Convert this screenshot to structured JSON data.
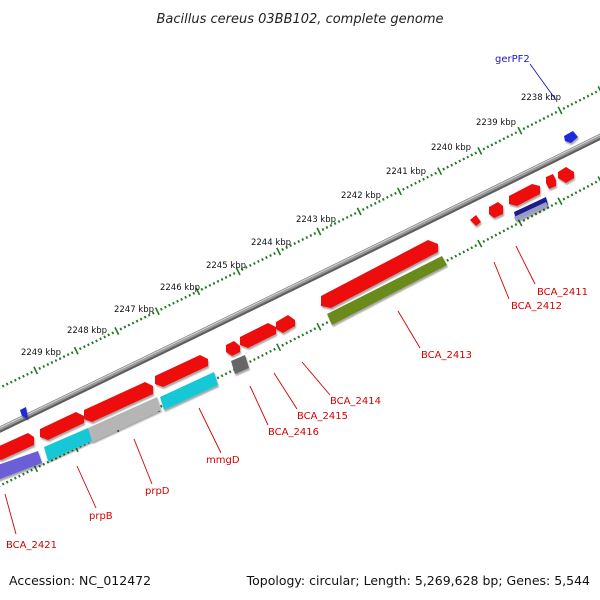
{
  "title": "Bacillus cereus 03BB102, complete genome",
  "accession": "Accession: NC_012472",
  "summary": "Topology: circular; Length: 5,269,628 bp; Genes: 5,544",
  "colors": {
    "backbone": "#8a8a8a",
    "tick_green": "#1f7a1f",
    "gene_red": "#ee1111",
    "gene_cyan": "#19c7d6",
    "gene_gray": "#b5b5b5",
    "gene_dark_gray": "#666666",
    "gene_olive": "#6a8a1e",
    "gene_purple": "#6a5fd6",
    "gene_navy": "#1a1a8c",
    "gene_blue": "#1a2ad8",
    "label_red": "#d40000",
    "label_blue": "#1a1ab8"
  },
  "scale_labels": [
    "2238 kbp",
    "2239 kbp",
    "2240 kbp",
    "2241 kbp",
    "2242 kbp",
    "2243 kbp",
    "2244 kbp",
    "2245 kbp",
    "2246 kbp",
    "2247 kbp",
    "2248 kbp",
    "2249 kbp"
  ],
  "gene_labels": [
    {
      "text": "gerPF2",
      "color": "#1a1ab8"
    },
    {
      "text": "BCA_2411",
      "color": "#d40000"
    },
    {
      "text": "BCA_2412",
      "color": "#d40000"
    },
    {
      "text": "BCA_2413",
      "color": "#d40000"
    },
    {
      "text": "BCA_2414",
      "color": "#d40000"
    },
    {
      "text": "BCA_2415",
      "color": "#d40000"
    },
    {
      "text": "BCA_2416",
      "color": "#d40000"
    },
    {
      "text": "mmgD",
      "color": "#d40000"
    },
    {
      "text": "prpD",
      "color": "#d40000"
    },
    {
      "text": "prpB",
      "color": "#d40000"
    },
    {
      "text": "BCA_2421",
      "color": "#d40000"
    }
  ]
}
